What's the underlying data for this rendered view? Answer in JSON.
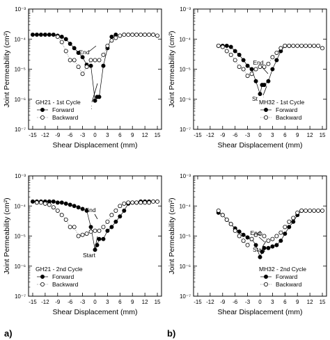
{
  "panel_labels": {
    "a": "a)",
    "b": "b)"
  },
  "chart_data": [
    {
      "type": "scatter",
      "id": "gh21-1",
      "title": "",
      "xlabel": "Shear Displacement (mm)",
      "ylabel": "Joint Permeability (cm²)",
      "xlim": [
        -16,
        16
      ],
      "ylim": [
        1e-07,
        0.001
      ],
      "yscale": "log",
      "xticks": [
        "-15",
        "-12",
        "-9",
        "-6",
        "-3",
        "0",
        "3",
        "6",
        "9",
        "12",
        "15"
      ],
      "yticks": [
        "10⁻⁷",
        "10⁻⁶",
        "10⁻⁵",
        "10⁻⁴",
        "10⁻³"
      ],
      "legend": {
        "title": "GH21 - 1st Cycle",
        "position": "bottom-left",
        "entries": [
          "Forward",
          "Backward"
        ]
      },
      "annotations": [
        "End",
        "Start"
      ],
      "series": [
        {
          "name": "Forward",
          "marker": "filled",
          "x": [
            -15,
            -14,
            -13,
            -12,
            -11,
            -10,
            -9,
            -8,
            -7,
            -6,
            -5,
            -4,
            -3,
            -2,
            -1,
            0,
            0.5,
            1,
            2,
            3,
            4,
            5
          ],
          "y": [
            0.00014,
            0.00014,
            0.00014,
            0.00014,
            0.00014,
            0.00014,
            0.00013,
            0.00012,
            0.0001,
            7e-05,
            5e-05,
            3.5e-05,
            2.5e-05,
            1.4e-05,
            1.3e-05,
            9e-07,
            1.2e-06,
            1.2e-06,
            1.3e-05,
            5e-05,
            0.00012,
            0.00014
          ]
        },
        {
          "name": "Backward",
          "marker": "open",
          "x": [
            15,
            14,
            13,
            12,
            11,
            10,
            9,
            8,
            7,
            6,
            5,
            4,
            3,
            2,
            1,
            0,
            -1,
            -2,
            -3,
            -4,
            -5,
            -6,
            -7,
            -8,
            -9
          ],
          "y": [
            0.00013,
            0.00014,
            0.00014,
            0.00014,
            0.00014,
            0.00014,
            0.00014,
            0.00014,
            0.00014,
            0.00013,
            0.00011,
            9e-05,
            6e-05,
            3e-05,
            2e-05,
            2e-05,
            2e-05,
            1.2e-05,
            7e-06,
            1.2e-05,
            2e-05,
            2e-05,
            4e-05,
            8e-05,
            0.00012
          ]
        }
      ]
    },
    {
      "type": "scatter",
      "id": "mh32-1",
      "title": "",
      "xlabel": "Shear Displacement (mm)",
      "ylabel": "Joint Permeability (cm²)",
      "xlim": [
        -16,
        16
      ],
      "ylim": [
        1e-07,
        0.001
      ],
      "yscale": "log",
      "xticks": [
        "-15",
        "-12",
        "-9",
        "-6",
        "-3",
        "0",
        "3",
        "6",
        "9",
        "12",
        "15"
      ],
      "yticks": [
        "10⁻⁷",
        "10⁻⁶",
        "10⁻⁵",
        "10⁻⁴",
        "10⁻³"
      ],
      "legend": {
        "title": "MH32 - 1st Cycle",
        "position": "bottom-right",
        "entries": [
          "Forward",
          "Backward"
        ]
      },
      "annotations": [
        "End",
        "Start"
      ],
      "series": [
        {
          "name": "Forward",
          "marker": "filled",
          "x": [
            -10,
            -9,
            -8,
            -7,
            -6,
            -5,
            -4,
            -3,
            -2,
            -1,
            0,
            0.5,
            1,
            2,
            3,
            4,
            5,
            6,
            7
          ],
          "y": [
            6e-05,
            6e-05,
            6e-05,
            5.5e-05,
            4e-05,
            3e-05,
            2e-05,
            1.3e-05,
            1e-05,
            4e-06,
            1.5e-06,
            3e-06,
            3e-06,
            4e-06,
            1e-05,
            2e-05,
            4e-05,
            6e-05,
            6e-05
          ]
        },
        {
          "name": "Backward",
          "marker": "open",
          "x": [
            15,
            14,
            13,
            12,
            11,
            10,
            9,
            8,
            7,
            6,
            5,
            4,
            3,
            2,
            1,
            0,
            -1,
            -2,
            -3,
            -4,
            -5,
            -6,
            -7,
            -8,
            -9,
            -10
          ],
          "y": [
            5e-05,
            6e-05,
            6e-05,
            6e-05,
            6e-05,
            6e-05,
            6e-05,
            6e-05,
            6e-05,
            6e-05,
            5e-05,
            3.5e-05,
            2.5e-05,
            1.5e-05,
            1.2e-05,
            1.2e-05,
            1e-05,
            7e-06,
            6e-06,
            1e-05,
            1.2e-05,
            2e-05,
            3e-05,
            4e-05,
            5.5e-05,
            6e-05
          ]
        }
      ]
    },
    {
      "type": "scatter",
      "id": "gh21-2",
      "title": "",
      "xlabel": "Shear Displacement (mm)",
      "ylabel": "Joint Permeability (cm²)",
      "xlim": [
        -16,
        16
      ],
      "ylim": [
        1e-07,
        0.001
      ],
      "yscale": "log",
      "xticks": [
        "-15",
        "-12",
        "-9",
        "-6",
        "-3",
        "0",
        "3",
        "6",
        "9",
        "12",
        "15"
      ],
      "yticks": [
        "10⁻⁷",
        "10⁻⁶",
        "10⁻⁵",
        "10⁻⁴",
        "10⁻³"
      ],
      "legend": {
        "title": "GH21 - 2nd Cycle",
        "position": "bottom-left",
        "entries": [
          "Forward",
          "Backward"
        ]
      },
      "annotations": [
        "End",
        "Start"
      ],
      "series": [
        {
          "name": "Forward",
          "marker": "filled",
          "x": [
            -15,
            -14,
            -13,
            -12,
            -11,
            -10,
            -9,
            -8,
            -7,
            -6,
            -5,
            -4,
            -3,
            -2,
            -1,
            0,
            0.5,
            1,
            2,
            3,
            4,
            5,
            6,
            7,
            8,
            9,
            10,
            11,
            12,
            13
          ],
          "y": [
            0.00014,
            0.00014,
            0.00014,
            0.00014,
            0.00014,
            0.00014,
            0.00013,
            0.00013,
            0.00012,
            0.00011,
            0.0001,
            9e-05,
            8e-05,
            7e-05,
            2e-05,
            3.5e-06,
            5e-06,
            8e-06,
            8e-06,
            1.5e-05,
            2e-05,
            3e-05,
            4.5e-05,
            7e-05,
            0.00012,
            0.00013,
            0.00013,
            0.00014,
            0.00014,
            0.00014
          ]
        },
        {
          "name": "Backward",
          "marker": "open",
          "x": [
            15,
            14,
            13,
            12,
            11,
            10,
            9,
            8,
            7,
            6,
            5,
            4,
            3,
            2,
            1,
            0,
            -1,
            -2,
            -3,
            -4,
            -5,
            -6,
            -7,
            -8,
            -9,
            -10,
            -11,
            -12,
            -13,
            -14
          ],
          "y": [
            0.00014,
            0.00014,
            0.00013,
            0.00013,
            0.00013,
            0.00013,
            0.00013,
            0.00013,
            0.00012,
            0.0001,
            7e-05,
            5e-05,
            3e-05,
            2e-05,
            1.5e-05,
            1.5e-05,
            1.4e-05,
            1.2e-05,
            1.1e-05,
            1e-05,
            2e-05,
            2e-05,
            3.5e-05,
            5e-05,
            7e-05,
            9e-05,
            0.00011,
            0.00012,
            0.00013,
            0.00013
          ]
        }
      ]
    },
    {
      "type": "scatter",
      "id": "mh32-2",
      "title": "",
      "xlabel": "Shear Displacement (mm)",
      "ylabel": "Joint Permeability (cm²)",
      "xlim": [
        -16,
        16
      ],
      "ylim": [
        1e-07,
        0.001
      ],
      "yscale": "log",
      "xticks": [
        "-15",
        "-12",
        "-9",
        "-6",
        "-3",
        "0",
        "3",
        "6",
        "9",
        "12",
        "15"
      ],
      "yticks": [
        "10⁻⁷",
        "10⁻⁶",
        "10⁻⁵",
        "10⁻⁴",
        "10⁻³"
      ],
      "legend": {
        "title": "MH32 - 2nd Cycle",
        "position": "bottom-right",
        "entries": [
          "Forward",
          "Backward"
        ]
      },
      "annotations": [
        "End",
        "Start"
      ],
      "series": [
        {
          "name": "Forward",
          "marker": "filled",
          "x": [
            -10,
            -9,
            -8,
            -7,
            -6,
            -5,
            -4,
            -3,
            -2,
            -1,
            0,
            0.5,
            1,
            2,
            3,
            4,
            5,
            6,
            7,
            8,
            9,
            10
          ],
          "y": [
            6e-05,
            5e-05,
            3.5e-05,
            2.5e-05,
            1.8e-05,
            1.4e-05,
            1.1e-05,
            9e-06,
            8e-06,
            5e-06,
            2e-06,
            3e-06,
            4e-06,
            4e-06,
            4.5e-06,
            5e-06,
            7e-06,
            1.2e-05,
            2e-05,
            3e-05,
            5e-05,
            7e-05
          ]
        },
        {
          "name": "Backward",
          "marker": "open",
          "x": [
            15,
            14,
            13,
            12,
            11,
            10,
            9,
            8,
            7,
            6,
            5,
            4,
            3,
            2,
            1,
            0,
            -1,
            -2,
            -3,
            -4,
            -5,
            -6,
            -7,
            -8,
            -9,
            -10
          ],
          "y": [
            7e-05,
            7e-05,
            7e-05,
            7e-05,
            7e-05,
            7e-05,
            6e-05,
            4e-05,
            3e-05,
            2e-05,
            1.3e-05,
            1e-05,
            8e-06,
            7e-06,
            1e-05,
            1.2e-05,
            1.1e-05,
            8e-06,
            5e-06,
            7e-06,
            1e-05,
            1.5e-05,
            2.5e-05,
            3.5e-05,
            5e-05,
            7e-05
          ]
        }
      ]
    }
  ]
}
